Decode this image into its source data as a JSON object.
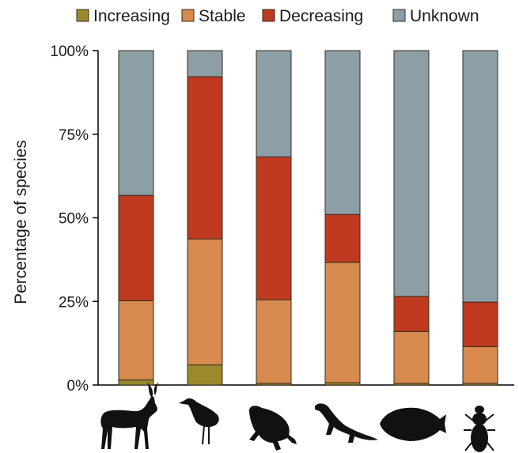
{
  "chart_data": {
    "type": "bar",
    "stacked": true,
    "categories": [
      "large-mammal",
      "shorebird",
      "frog",
      "lizard",
      "fish",
      "beetle"
    ],
    "series": [
      {
        "name": "Increasing",
        "color": "#9a8a2c",
        "values": [
          1.5,
          6.0,
          0.5,
          0.7,
          0.5,
          0.5
        ]
      },
      {
        "name": "Stable",
        "color": "#d68a4e",
        "values": [
          23.7,
          37.7,
          25.0,
          36.0,
          15.5,
          11.0
        ]
      },
      {
        "name": "Decreasing",
        "color": "#bf3a20",
        "values": [
          31.5,
          48.5,
          42.7,
          14.3,
          10.5,
          13.3
        ]
      },
      {
        "name": "Unknown",
        "color": "#8c9ea6",
        "values": [
          43.3,
          7.8,
          31.8,
          49.0,
          73.5,
          75.2
        ]
      }
    ],
    "ylabel": "Percentage of species",
    "ylim": [
      0,
      100
    ],
    "yticks": [
      "0%",
      "25%",
      "50%",
      "75%",
      "100%"
    ],
    "ytick_values": [
      0,
      25,
      50,
      75,
      100
    ],
    "legend_position": "top",
    "grid": false,
    "category_icons": [
      "antelope-silhouette-icon",
      "shorebird-silhouette-icon",
      "frog-silhouette-icon",
      "lizard-silhouette-icon",
      "fish-silhouette-icon",
      "beetle-silhouette-icon"
    ]
  }
}
